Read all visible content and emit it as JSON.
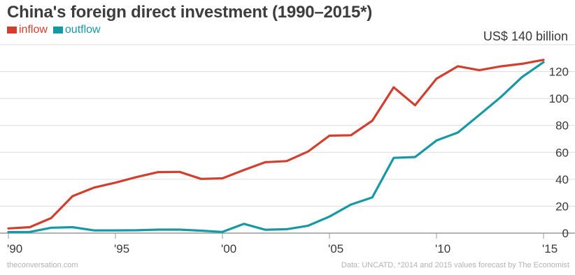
{
  "header": {
    "title": "China's foreign direct investment (1990–2015*)",
    "unit_label": "US$ 140 billion"
  },
  "footer": {
    "source_left": "theconversation.com",
    "source_right": "Data: UNCATD, *2014 and 2015 values forecast by The Economist"
  },
  "chart_data": {
    "type": "line",
    "title": "China's foreign direct investment (1990–2015*)",
    "xlabel": "",
    "ylabel": "US$ billion",
    "x": [
      1990,
      1991,
      1992,
      1993,
      1994,
      1995,
      1996,
      1997,
      1998,
      1999,
      2000,
      2001,
      2002,
      2003,
      2004,
      2005,
      2006,
      2007,
      2008,
      2009,
      2010,
      2011,
      2012,
      2013,
      2014,
      2015
    ],
    "xlim": [
      1990,
      2015
    ],
    "ylim": [
      0,
      140
    ],
    "x_ticks": [
      1990,
      1995,
      2000,
      2005,
      2010,
      2015
    ],
    "x_tick_labels": [
      "'90",
      "'95",
      "'00",
      "'05",
      "'10",
      "'15"
    ],
    "y_ticks": [
      0,
      20,
      40,
      60,
      80,
      100,
      120
    ],
    "y_tick_labels": [
      "0",
      "20",
      "40",
      "60",
      "80",
      "100",
      "120"
    ],
    "grid": "horizontal",
    "legend_position": "top-left",
    "series": [
      {
        "name": "inflow",
        "color": "#d13f2f",
        "values": [
          3.5,
          4.4,
          11.2,
          27.5,
          33.8,
          37.5,
          41.7,
          45.3,
          45.5,
          40.3,
          40.7,
          46.9,
          52.7,
          53.5,
          60.6,
          72.4,
          72.7,
          83.5,
          108.3,
          95,
          114.7,
          124,
          121,
          123.9,
          125.8,
          128.7
        ]
      },
      {
        "name": "outflow",
        "color": "#1798a5",
        "values": [
          0.8,
          0.9,
          4,
          4.4,
          2,
          2,
          2.1,
          2.6,
          2.6,
          1.8,
          0.9,
          6.9,
          2.5,
          2.9,
          5.5,
          12.3,
          21.2,
          26.5,
          55.9,
          56.5,
          68.8,
          74.7,
          87.8,
          101,
          116,
          127
        ]
      }
    ]
  }
}
